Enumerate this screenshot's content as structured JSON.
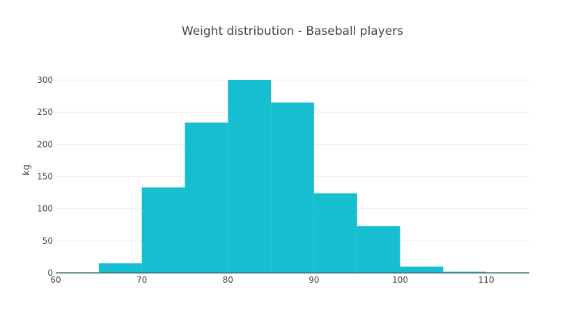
{
  "chart_data": {
    "type": "bar",
    "title": "Weight distribution - Baseball players",
    "xlabel": "",
    "ylabel": "kg",
    "bin_edges": [
      60,
      65,
      70,
      75,
      80,
      85,
      90,
      95,
      100,
      105,
      110,
      115
    ],
    "values": [
      1,
      15,
      133,
      234,
      300,
      265,
      124,
      73,
      10,
      2,
      1
    ],
    "xlim": [
      60,
      115
    ],
    "ylim": [
      0,
      300
    ],
    "x_ticks": [
      60,
      70,
      80,
      90,
      100,
      110
    ],
    "y_ticks": [
      0,
      50,
      100,
      150,
      200,
      250,
      300
    ],
    "bar_color": "#17becf",
    "grid": true
  }
}
